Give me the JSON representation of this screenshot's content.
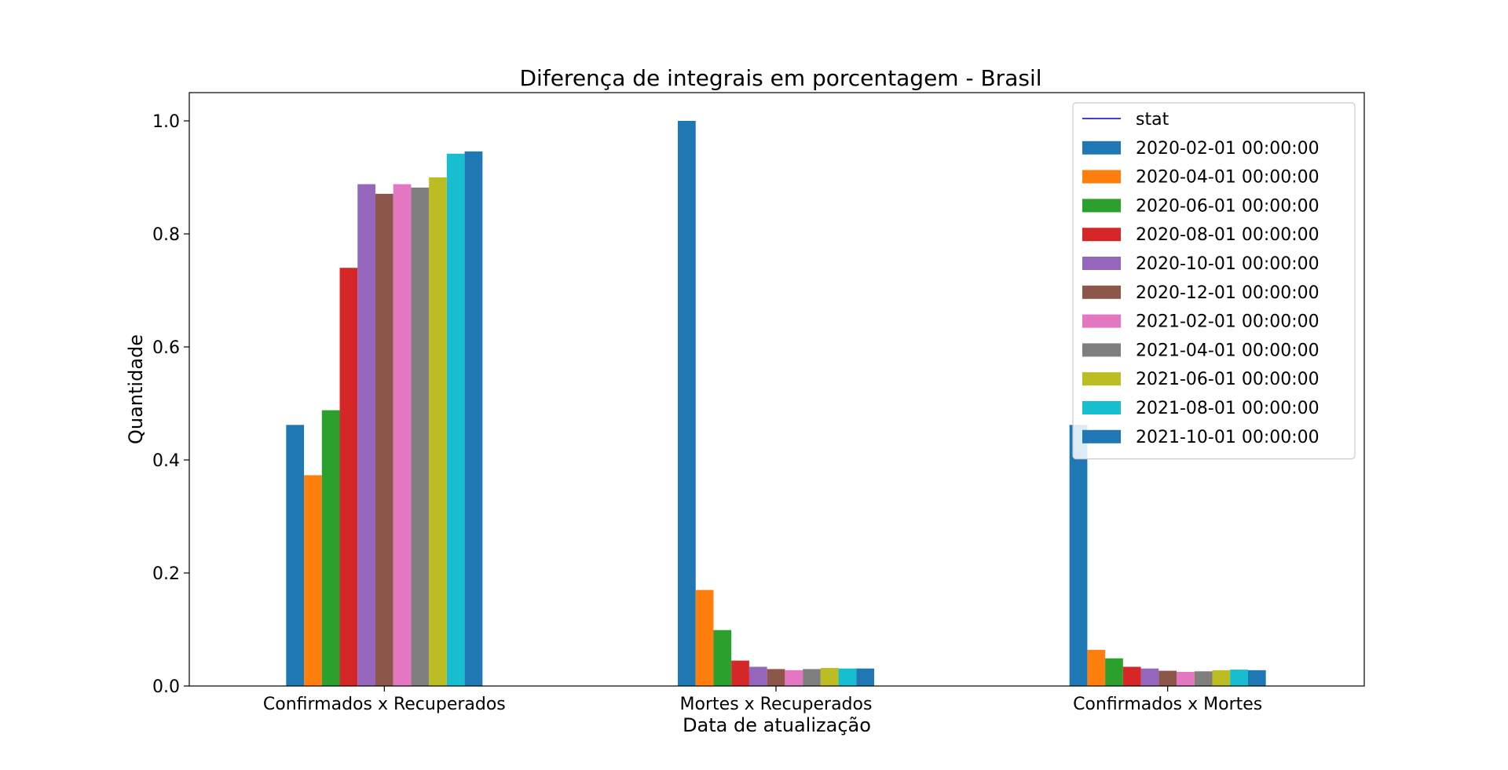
{
  "chart_data": {
    "type": "bar",
    "title": "Diferença de integrais em porcentagem - Brasil",
    "xlabel": "Data de atualização",
    "ylabel": "Quantidade",
    "categories": [
      "Confirmados x Recuperados",
      "Mortes x Recuperados",
      "Confirmados x Mortes"
    ],
    "ylim": [
      0,
      1.05
    ],
    "yticks": [
      "0.0",
      "0.2",
      "0.4",
      "0.6",
      "0.8",
      "1.0"
    ],
    "grid": false,
    "legend_position": "top-right",
    "legend_line": {
      "name": "stat",
      "color": "#0000cc"
    },
    "series": [
      {
        "name": "2020-02-01 00:00:00",
        "color": "#1f77b4",
        "values": [
          0.462,
          1.0,
          0.462
        ]
      },
      {
        "name": "2020-04-01 00:00:00",
        "color": "#ff7f0e",
        "values": [
          0.373,
          0.17,
          0.064
        ]
      },
      {
        "name": "2020-06-01 00:00:00",
        "color": "#2ca02c",
        "values": [
          0.488,
          0.099,
          0.049
        ]
      },
      {
        "name": "2020-08-01 00:00:00",
        "color": "#d62728",
        "values": [
          0.74,
          0.045,
          0.034
        ]
      },
      {
        "name": "2020-10-01 00:00:00",
        "color": "#9467bd",
        "values": [
          0.888,
          0.034,
          0.031
        ]
      },
      {
        "name": "2020-12-01 00:00:00",
        "color": "#8c564b",
        "values": [
          0.871,
          0.03,
          0.027
        ]
      },
      {
        "name": "2021-02-01 00:00:00",
        "color": "#e377c2",
        "values": [
          0.888,
          0.028,
          0.025
        ]
      },
      {
        "name": "2021-04-01 00:00:00",
        "color": "#7f7f7f",
        "values": [
          0.882,
          0.03,
          0.026
        ]
      },
      {
        "name": "2021-06-01 00:00:00",
        "color": "#bcbd22",
        "values": [
          0.9,
          0.032,
          0.028
        ]
      },
      {
        "name": "2021-08-01 00:00:00",
        "color": "#17becf",
        "values": [
          0.942,
          0.031,
          0.029
        ]
      },
      {
        "name": "2021-10-01 00:00:00",
        "color": "#1f77b4",
        "values": [
          0.946,
          0.031,
          0.028
        ]
      }
    ]
  }
}
